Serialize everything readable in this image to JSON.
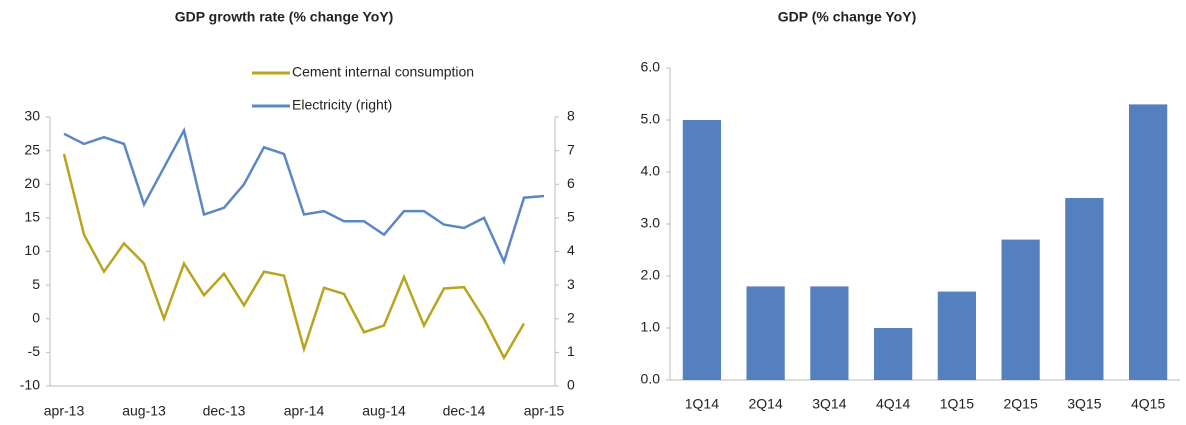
{
  "chart_data": [
    {
      "type": "line",
      "title": "GDP growth rate (% change YoY)",
      "categories": [
        "apr-13",
        null,
        null,
        null,
        "aug-13",
        null,
        null,
        null,
        "dec-13",
        null,
        null,
        null,
        "apr-14",
        null,
        null,
        null,
        "aug-14",
        null,
        null,
        null,
        "dec-14",
        null,
        null,
        null,
        "apr-15"
      ],
      "series": [
        {
          "name": "Cement internal consumption",
          "color": "#b8a41e",
          "values": [
            24.5,
            12.5,
            7,
            11.2,
            8.2,
            0,
            8.2,
            3.5,
            6.7,
            2,
            7,
            6.4,
            -4.5,
            4.6,
            3.7,
            -2,
            -1,
            6.2,
            -1,
            4.5,
            4.7,
            0,
            -5.8,
            -0.7,
            null
          ]
        },
        {
          "name": "Electricity (right)",
          "color": "#5b87c7",
          "axis": "y2",
          "values": [
            7.5,
            7.2,
            7.4,
            7.2,
            5.4,
            6.5,
            7.6,
            5.1,
            5.3,
            6.0,
            7.1,
            6.9,
            5.1,
            5.2,
            4.9,
            4.9,
            4.5,
            5.2,
            5.2,
            4.8,
            4.7,
            5.0,
            3.7,
            5.6,
            5.65
          ]
        }
      ],
      "ylim": [
        -10,
        30
      ],
      "yticks": [
        -10,
        -5,
        0,
        5,
        10,
        15,
        20,
        25,
        30
      ],
      "y2lim": [
        0,
        8
      ],
      "y2ticks": [
        0,
        1,
        2,
        3,
        4,
        5,
        6,
        7,
        8
      ],
      "legend": "top-right"
    },
    {
      "type": "bar",
      "title": "GDP (% change YoY)",
      "categories": [
        "1Q14",
        "2Q14",
        "3Q14",
        "4Q14",
        "1Q15",
        "2Q15",
        "3Q15",
        "4Q15"
      ],
      "values": [
        5.0,
        1.8,
        1.8,
        1.0,
        1.7,
        2.7,
        3.5,
        5.3
      ],
      "color": "#5580bf",
      "ylim": [
        0,
        6
      ],
      "yticks": [
        {
          "value": 0,
          "label": "0.0"
        },
        {
          "value": 1,
          "label": "1.0"
        },
        {
          "value": 2,
          "label": "2.0"
        },
        {
          "value": 3,
          "label": "3.0"
        },
        {
          "value": 4,
          "label": "4.0"
        },
        {
          "value": 5,
          "label": "5.0"
        },
        {
          "value": 6,
          "label": "6.0"
        }
      ]
    }
  ]
}
